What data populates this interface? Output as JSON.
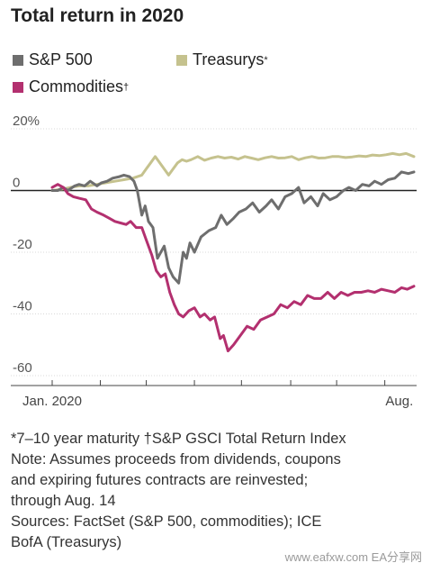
{
  "title": "Total return in 2020",
  "legend": [
    {
      "label": "S&P 500",
      "sup": "",
      "color": "#6e6e6e"
    },
    {
      "label": "Treasurys",
      "sup": "*",
      "color": "#c5c28e"
    },
    {
      "label": "Commodities",
      "sup": "†",
      "color": "#b3306f"
    }
  ],
  "chart_data": {
    "type": "line",
    "ylim": [
      -60,
      20
    ],
    "yticks": [
      {
        "v": 20,
        "label": "20%"
      },
      {
        "v": 0,
        "label": "0"
      },
      {
        "v": -20,
        "label": "-20"
      },
      {
        "v": -40,
        "label": "-40"
      },
      {
        "v": -60,
        "label": "-60"
      }
    ],
    "xlim": [
      0,
      32.3
    ],
    "xticklabels": [
      {
        "x": 0,
        "label": "Jan. 2020"
      },
      {
        "x": 31,
        "label": "Aug."
      }
    ],
    "xtick_positions": [
      0,
      4.3,
      8.4,
      12.7,
      16.9,
      21.3,
      25.4,
      29.7
    ],
    "series": [
      {
        "name": "S&P 500",
        "color": "#6e6e6e",
        "x": [
          0,
          0.5,
          1,
          1.4,
          2,
          2.4,
          2.9,
          3.4,
          4,
          4.4,
          4.9,
          5.4,
          6,
          6.4,
          6.9,
          7.3,
          7.6,
          8,
          8.3,
          8.6,
          9,
          9.4,
          10,
          10.4,
          10.8,
          11.3,
          11.7,
          12,
          12.3,
          12.7,
          13.3,
          14,
          14.6,
          15.1,
          15.6,
          16.2,
          16.7,
          17.3,
          17.9,
          18.5,
          19.1,
          19.6,
          20.2,
          20.8,
          21.4,
          22,
          22.5,
          23.1,
          23.7,
          24.2,
          24.8,
          25.4,
          26,
          26.5,
          27.1,
          27.7,
          28.3,
          28.8,
          29.4,
          30,
          30.6,
          31.2,
          31.8,
          32.3
        ],
        "y": [
          0,
          0,
          1,
          0,
          1.5,
          2,
          1.5,
          3,
          1.5,
          2.5,
          3,
          4,
          4.5,
          5,
          4.5,
          3,
          0,
          -8,
          -5,
          -10,
          -12,
          -22,
          -18,
          -25,
          -28,
          -30,
          -20,
          -22,
          -17,
          -20,
          -15,
          -13,
          -12,
          -8,
          -11,
          -9,
          -7,
          -6,
          -4,
          -7,
          -5,
          -3,
          -6,
          -2,
          -1,
          1,
          -4,
          -2,
          -5,
          -1,
          -3,
          -2,
          0,
          1,
          0,
          2,
          1.5,
          3,
          2,
          3.5,
          4,
          6,
          5.5,
          6
        ]
      },
      {
        "name": "Treasurys",
        "color": "#c5c28e",
        "x": [
          0,
          1,
          1.6,
          2.4,
          3.2,
          4,
          4.8,
          5.6,
          6.4,
          7.2,
          8,
          8.4,
          8.8,
          9.2,
          9.8,
          10.4,
          10.8,
          11.2,
          11.6,
          12,
          12.4,
          13,
          13.6,
          14.2,
          14.8,
          15.4,
          16,
          16.6,
          17.2,
          17.8,
          18.4,
          19,
          19.6,
          20.2,
          20.8,
          21.4,
          22,
          22.6,
          23.2,
          23.8,
          24.4,
          25,
          25.6,
          26.2,
          26.8,
          27.4,
          28,
          28.6,
          29.2,
          29.8,
          30.4,
          31,
          31.6,
          32.3
        ],
        "y": [
          0,
          0.5,
          1,
          1.5,
          1.5,
          2,
          2.5,
          3,
          3.5,
          4,
          5,
          7,
          9,
          11,
          8,
          5,
          7,
          9,
          10,
          9.5,
          10,
          11,
          9.8,
          10.5,
          11,
          10.5,
          10.8,
          10.2,
          11,
          10.5,
          10,
          10.6,
          11,
          10.5,
          10.6,
          11,
          10,
          10.6,
          11,
          10.5,
          10.6,
          11,
          11,
          10.7,
          10.9,
          11.2,
          11,
          11.5,
          11.3,
          11.6,
          12,
          11.6,
          12,
          11
        ]
      },
      {
        "name": "Commodities",
        "color": "#b3306f",
        "x": [
          0,
          0.5,
          1,
          1.4,
          1.9,
          2.4,
          3,
          3.5,
          4,
          4.6,
          5.1,
          5.6,
          6.1,
          6.6,
          7,
          7.5,
          8,
          8.4,
          8.9,
          9.3,
          9.7,
          10.1,
          10.5,
          10.9,
          11.3,
          11.7,
          12.2,
          12.7,
          13.2,
          13.6,
          14.1,
          14.5,
          15,
          15.3,
          15.7,
          16.2,
          16.8,
          17.4,
          18,
          18.6,
          19.2,
          19.8,
          20.4,
          21,
          21.6,
          22.2,
          22.8,
          23.4,
          24,
          24.6,
          25.2,
          25.8,
          26.4,
          27,
          27.6,
          28.2,
          28.8,
          29.4,
          30,
          30.6,
          31.2,
          31.7,
          32.3
        ],
        "y": [
          1,
          2,
          1,
          -1,
          -2,
          -2.5,
          -3,
          -6,
          -7,
          -8,
          -9,
          -10,
          -10.5,
          -11,
          -10,
          -12,
          -12,
          -16,
          -21,
          -26,
          -28,
          -27,
          -33,
          -37,
          -40,
          -41,
          -39,
          -38,
          -41,
          -40,
          -42,
          -41,
          -48,
          -47,
          -52,
          -50,
          -47,
          -44,
          -45,
          -42,
          -41,
          -40,
          -37,
          -38,
          -36,
          -37,
          -34,
          -35,
          -35,
          -33,
          -35,
          -33,
          -34,
          -33,
          -33,
          -32.5,
          -33,
          -32,
          -32.5,
          -33,
          -31.5,
          -32,
          -31
        ]
      }
    ]
  },
  "footnotes": [
    "*7–10 year maturity †S&P GSCI Total Return Index",
    "Note: Assumes proceeds from dividends, coupons",
    "and expiring futures contracts are reinvested;",
    "through Aug. 14",
    "Sources: FactSet (S&P 500, commodities); ICE",
    "BofA (Treasurys)"
  ],
  "watermark": "www.eafxw.com   EA分享网"
}
